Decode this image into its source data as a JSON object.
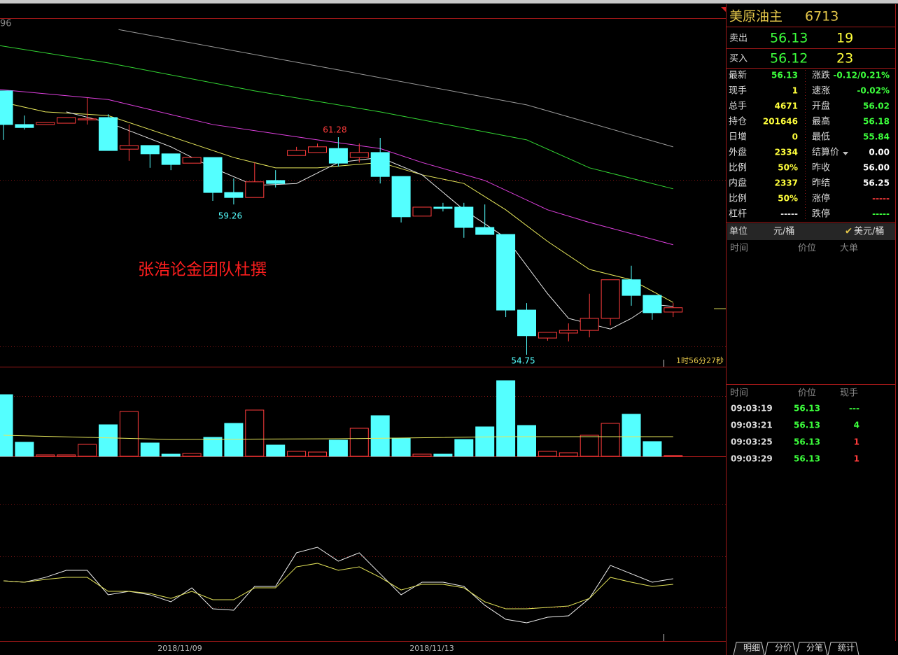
{
  "chart_data": {
    "type": "candlestick",
    "corner_label": "96",
    "annotation": "张浩论金团队杜撰",
    "countdown": "1时56分27秒",
    "x_labels": [
      "2018/11/09",
      "2018/11/13"
    ],
    "ylim": [
      54.39,
      64.81
    ],
    "up_color": "#ff3c3c",
    "down_color": "#54ffff",
    "ohlc": [
      [
        62.67,
        62.67,
        61.2,
        61.66
      ],
      [
        61.66,
        61.93,
        61.51,
        61.57
      ],
      [
        61.66,
        61.72,
        61.66,
        61.72
      ],
      [
        61.7,
        61.87,
        61.7,
        61.87
      ],
      [
        61.81,
        62.46,
        61.66,
        61.83
      ],
      [
        61.87,
        61.97,
        60.88,
        60.88
      ],
      [
        60.92,
        61.66,
        60.57,
        61.03
      ],
      [
        61.03,
        61.03,
        60.36,
        60.78
      ],
      [
        60.78,
        60.78,
        60.29,
        60.46
      ],
      [
        60.5,
        60.67,
        60.5,
        60.67
      ],
      [
        60.67,
        60.67,
        59.37,
        59.62
      ],
      [
        59.62,
        60.04,
        59.26,
        59.47
      ],
      [
        59.47,
        60.52,
        59.47,
        59.94
      ],
      [
        59.98,
        60.29,
        59.77,
        59.89
      ],
      [
        60.73,
        60.99,
        60.73,
        60.88
      ],
      [
        60.82,
        61.09,
        60.82,
        60.99
      ],
      [
        60.94,
        61.28,
        60.4,
        60.5
      ],
      [
        60.67,
        61.09,
        60.52,
        60.82
      ],
      [
        60.82,
        61.26,
        59.89,
        60.1
      ],
      [
        60.1,
        60.1,
        58.72,
        58.89
      ],
      [
        58.91,
        59.18,
        58.91,
        59.18
      ],
      [
        59.18,
        59.31,
        59.05,
        59.14
      ],
      [
        59.18,
        59.31,
        58.26,
        58.57
      ],
      [
        58.57,
        59.26,
        58.36,
        58.36
      ],
      [
        58.36,
        58.36,
        55.88,
        56.09
      ],
      [
        56.09,
        56.3,
        54.75,
        55.32
      ],
      [
        55.25,
        55.42,
        55.17,
        55.42
      ],
      [
        55.4,
        55.69,
        55.15,
        55.48
      ],
      [
        55.48,
        56.58,
        55.27,
        55.84
      ],
      [
        55.84,
        57.0,
        55.63,
        57.0
      ],
      [
        57.0,
        57.42,
        56.22,
        56.53
      ],
      [
        56.53,
        56.53,
        55.8,
        56.01
      ],
      [
        56.03,
        56.3,
        55.88,
        56.16
      ]
    ],
    "ma": [
      {
        "color": "#9a9a9a",
        "x": [
          5.5,
          16,
          25,
          32
        ],
        "values": [
          64.51,
          63.3,
          62.25,
          60.99
        ]
      },
      {
        "color": "#33d633",
        "x": [
          -0.2,
          5,
          12,
          18,
          25,
          28,
          32
        ],
        "values": [
          64.03,
          63.51,
          62.67,
          62.04,
          61.2,
          60.36,
          59.73
        ]
      },
      {
        "color": "#e040e0",
        "x": [
          -0.2,
          5,
          10,
          15,
          18,
          20,
          23,
          26,
          28,
          32
        ],
        "values": [
          62.71,
          62.41,
          61.66,
          61.2,
          60.94,
          60.52,
          59.98,
          59.1,
          58.72,
          58.05
        ]
      },
      {
        "color": "#e6e65a",
        "x": [
          -0.2,
          2,
          5,
          8,
          11,
          13,
          15,
          18,
          20,
          22,
          24,
          26,
          28,
          30,
          32
        ],
        "values": [
          62.35,
          62.04,
          61.93,
          61.3,
          60.67,
          60.36,
          60.36,
          60.52,
          60.15,
          59.89,
          59.1,
          58.15,
          57.31,
          57.0,
          56.32
        ]
      },
      {
        "color": "#e8e8e8",
        "x": [
          3,
          5,
          8,
          10,
          12,
          14,
          16,
          18,
          20,
          22,
          24,
          26,
          27,
          29,
          30,
          31,
          32
        ],
        "values": [
          62.04,
          61.72,
          60.99,
          60.36,
          59.83,
          59.89,
          60.52,
          60.67,
          60.15,
          59.1,
          58.26,
          56.58,
          55.84,
          55.52,
          55.84,
          56.26,
          56.2
        ]
      }
    ],
    "volume": {
      "ylim": [
        0,
        110
      ],
      "values": [
        88,
        20,
        2,
        2,
        17,
        45,
        64,
        19,
        3,
        4,
        27,
        47,
        66,
        16,
        7,
        6,
        23,
        40,
        58,
        26,
        3,
        3,
        24,
        42,
        108,
        44,
        7,
        5,
        30,
        47,
        60,
        21,
        1
      ],
      "avg": {
        "color": "#e6e65a",
        "x": [
          0,
          8,
          16,
          24,
          32
        ],
        "values": [
          30,
          24,
          25,
          28,
          28
        ]
      }
    },
    "indicator": {
      "ylim": [
        0,
        100
      ],
      "series": [
        {
          "color": "#f0f0f0",
          "values": [
            50,
            48.7,
            53.3,
            60,
            60,
            36.7,
            40,
            36.7,
            30,
            43.3,
            23.3,
            22,
            44.7,
            44.7,
            76.7,
            82,
            68.7,
            76.7,
            56.7,
            36.7,
            48.7,
            48.7,
            44.7,
            26.7,
            13.3,
            10,
            15.3,
            16.7,
            33.3,
            64.7,
            56.7,
            48.7,
            52
          ]
        },
        {
          "color": "#e6e65a",
          "values": [
            50,
            48.7,
            51.3,
            53.3,
            53.3,
            40,
            40,
            38,
            33.3,
            40,
            32,
            32,
            43.3,
            43.3,
            63.3,
            66.7,
            60,
            63.3,
            53.3,
            41.3,
            46.7,
            46.7,
            43.3,
            30,
            23.3,
            23.3,
            24.7,
            26,
            33.3,
            53.3,
            48.7,
            44.7,
            46.7
          ]
        }
      ]
    }
  },
  "quote_panel": {
    "title": "美原油主",
    "code": "6713",
    "last": 56.13,
    "ask": {
      "label": "卖出",
      "price": "56.13",
      "size": "19"
    },
    "bid": {
      "label": "买入",
      "price": "56.12",
      "size": "23"
    },
    "left": [
      {
        "label": "最新",
        "value": "56.13",
        "color": "#3cff3c"
      },
      {
        "label": "现手",
        "value": "1",
        "color": "#ffff3c"
      },
      {
        "label": "总手",
        "value": "4671",
        "color": "#ffff3c"
      },
      {
        "label": "持仓",
        "value": "201646",
        "color": "#ffff3c"
      },
      {
        "label": "日增",
        "value": "0",
        "color": "#ffff3c"
      },
      {
        "label": "外盘",
        "value": "2334",
        "color": "#ffff3c"
      },
      {
        "label": "比例",
        "value": "50%",
        "color": "#ffff3c"
      },
      {
        "label": "内盘",
        "value": "2337",
        "color": "#ffff3c"
      },
      {
        "label": "比例",
        "value": "50%",
        "color": "#ffff3c"
      },
      {
        "label": "杠杆",
        "value": "-----",
        "color": "#dddddd"
      }
    ],
    "right": [
      {
        "label": "涨跌",
        "value": "-0.12/0.21%",
        "color": "#3cff3c"
      },
      {
        "label": "速涨",
        "value": "-0.02%",
        "color": "#3cff3c"
      },
      {
        "label": "开盘",
        "value": "56.02",
        "color": "#3cff3c"
      },
      {
        "label": "最高",
        "value": "56.18",
        "color": "#3cff3c"
      },
      {
        "label": "最低",
        "value": "55.84",
        "color": "#3cff3c"
      },
      {
        "label": "结算价",
        "value": "0.00",
        "color": "#ffffff"
      },
      {
        "label": "昨收",
        "value": "56.00",
        "color": "#ffffff"
      },
      {
        "label": "昨结",
        "value": "56.25",
        "color": "#ffffff"
      },
      {
        "label": "涨停",
        "value": "-----",
        "color": "#ff3c3c"
      },
      {
        "label": "跌停",
        "value": "-----",
        "color": "#3cff3c"
      }
    ],
    "unit": {
      "label": "单位",
      "options": [
        "元/桶",
        "美元/桶"
      ]
    },
    "big_orders_header": [
      "时间",
      "价位",
      "大单"
    ],
    "ticks_header": [
      "时间",
      "价位",
      "现手"
    ],
    "ticks": [
      {
        "time": "09:03:19",
        "price": "56.13",
        "size": "---",
        "color": "#3cff3c"
      },
      {
        "time": "09:03:21",
        "price": "56.13",
        "size": "4",
        "color": "#3cff3c"
      },
      {
        "time": "09:03:25",
        "price": "56.13",
        "size": "1",
        "color": "#ff3c3c"
      },
      {
        "time": "09:03:29",
        "price": "56.13",
        "size": "1",
        "color": "#ff3c3c"
      }
    ],
    "tabs": [
      "明细",
      "分价",
      "分笔",
      "统计"
    ]
  }
}
